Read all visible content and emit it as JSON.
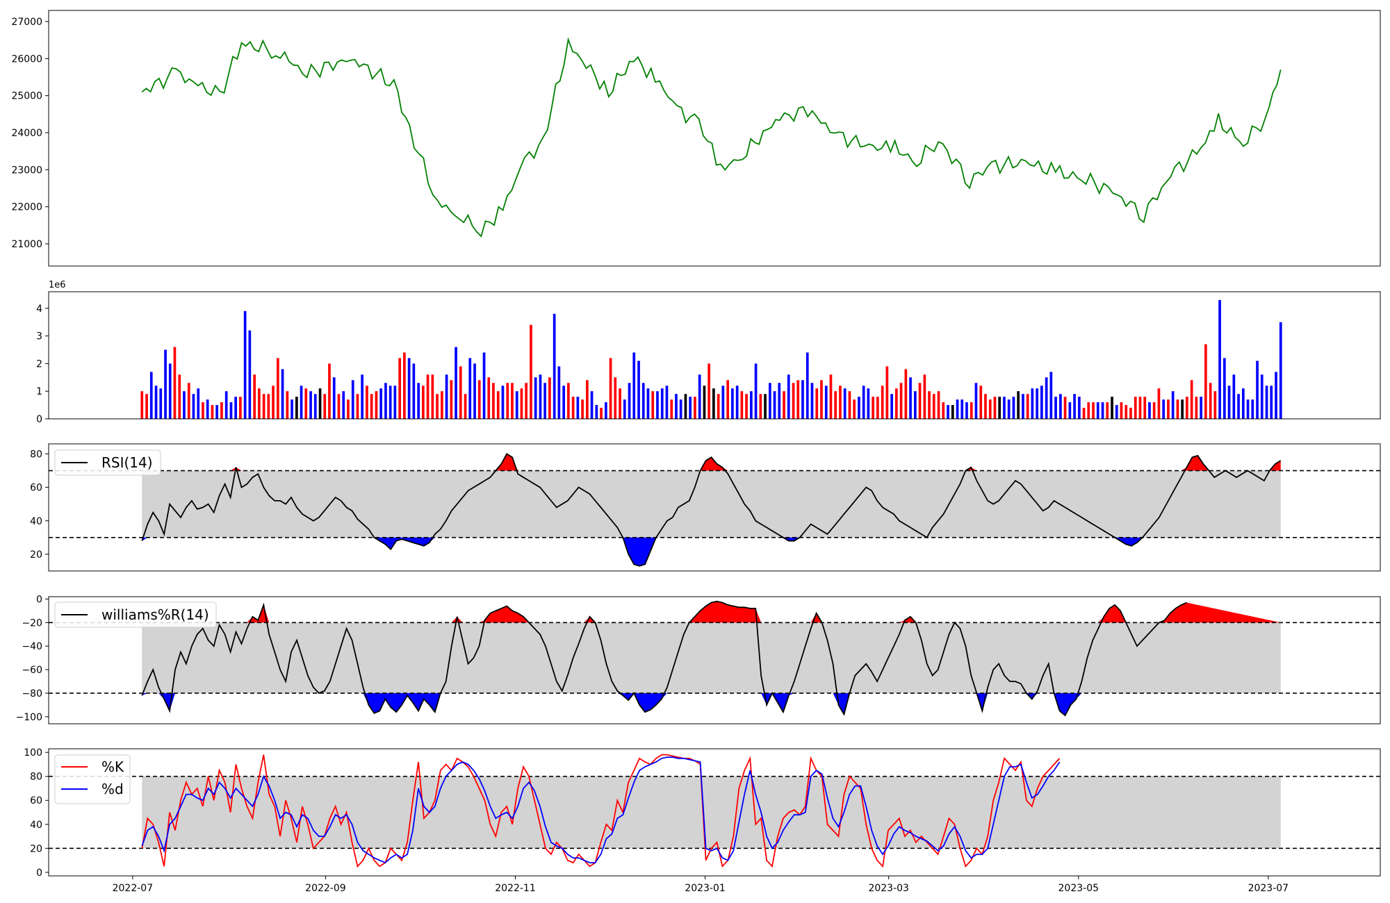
{
  "chart_data": [
    {
      "type": "line",
      "panel": "price",
      "color": "#008000",
      "ylim": [
        20400,
        27300
      ],
      "yticks": [
        "21000",
        "22000",
        "23000",
        "24000",
        "25000",
        "26000",
        "27000"
      ],
      "series": [
        {
          "x": [
            "2022-07-04",
            "2022-07-15",
            "2022-07-29",
            "2022-08-05",
            "2022-08-16",
            "2022-08-26",
            "2022-09-09",
            "2022-09-23",
            "2022-09-28",
            "2022-10-07",
            "2022-10-14",
            "2022-10-21",
            "2022-10-28",
            "2022-11-04",
            "2022-11-10",
            "2022-11-18",
            "2022-12-01",
            "2022-12-09",
            "2022-12-16",
            "2022-12-23",
            "2022-12-30",
            "2023-01-06",
            "2023-01-13",
            "2023-01-25",
            "2023-02-03",
            "2023-02-13",
            "2023-02-24",
            "2023-03-03",
            "2023-03-10",
            "2023-03-17",
            "2023-03-27",
            "2023-04-03",
            "2023-04-14",
            "2023-04-25",
            "2023-05-02",
            "2023-05-12",
            "2023-05-22",
            "2023-06-01",
            "2023-06-08",
            "2023-06-15",
            "2023-06-23",
            "2023-06-30",
            "2023-07-05"
          ],
          "values": [
            25100,
            25600,
            25000,
            26400,
            26200,
            25600,
            26000,
            25300,
            24100,
            22100,
            21800,
            21300,
            22000,
            23200,
            23800,
            26400,
            25100,
            26000,
            25500,
            24600,
            24300,
            23000,
            23400,
            24400,
            24600,
            23900,
            23600,
            23600,
            23200,
            23800,
            22700,
            23100,
            23200,
            22900,
            22800,
            22400,
            21800,
            23000,
            23400,
            24300,
            23700,
            24400,
            25700
          ]
        }
      ]
    },
    {
      "type": "bar",
      "panel": "volume",
      "offset_label": "1e6",
      "ylim": [
        0,
        4.6
      ],
      "yticks": [
        "0",
        "1",
        "2",
        "3",
        "4"
      ],
      "colors": {
        "up": "#ff0000",
        "down": "#0000ff",
        "flat": "#000000"
      },
      "values": [
        1.0,
        0.9,
        1.7,
        1.2,
        1.1,
        2.5,
        2.0,
        2.6,
        1.6,
        1.0,
        1.3,
        0.9,
        1.1,
        0.6,
        0.7,
        0.5,
        0.5,
        0.6,
        1.0,
        0.6,
        0.8,
        0.8,
        3.9,
        3.2,
        1.6,
        1.1,
        0.9,
        0.9,
        1.2,
        2.2,
        1.8,
        1.0,
        0.7,
        0.8,
        1.2,
        1.1,
        1.0,
        0.9,
        1.1,
        0.9,
        2.0,
        1.5,
        0.9,
        1.0,
        0.7,
        1.4,
        0.9,
        1.6,
        1.2,
        0.9,
        1.0,
        1.1,
        1.3,
        1.2,
        1.2,
        2.2,
        2.4,
        2.2,
        2.0,
        1.3,
        1.2,
        1.6,
        1.6,
        0.9,
        1.0,
        1.6,
        1.4,
        2.6,
        1.9,
        0.9,
        2.2,
        2.0,
        1.4,
        2.4,
        1.5,
        1.3,
        1.0,
        1.2,
        1.3,
        1.3,
        1.0,
        1.1,
        1.3,
        3.4,
        1.5,
        1.6,
        1.3,
        1.5,
        3.8,
        1.9,
        1.2,
        1.3,
        0.8,
        0.8,
        0.7,
        1.4,
        1.0,
        0.5,
        0.4,
        0.6,
        2.2,
        1.5,
        1.1,
        0.7,
        1.3,
        2.4,
        2.1,
        1.3,
        1.1,
        1.0,
        1.0,
        1.1,
        1.2,
        0.7,
        0.9,
        0.7,
        0.9,
        0.8,
        0.8,
        1.6,
        1.2,
        2.0,
        1.1,
        0.9,
        1.2,
        1.4,
        1.1,
        1.2,
        1.0,
        0.9,
        1.0,
        2.0,
        0.9,
        0.9,
        1.3,
        1.0,
        1.3,
        1.0,
        1.6,
        1.3,
        1.4,
        1.4,
        2.4,
        1.3,
        1.1,
        1.4,
        1.2,
        1.6,
        1.0,
        1.2,
        1.1,
        1.0,
        0.7,
        0.8,
        1.2,
        1.1,
        0.8,
        0.8,
        1.2,
        1.9,
        0.9,
        1.1,
        1.3,
        1.8,
        1.5,
        1.0,
        1.3,
        1.6,
        1.0,
        0.9,
        1.0,
        0.6,
        0.5,
        0.5,
        0.7,
        0.7,
        0.6,
        0.6,
        1.3,
        1.2,
        0.9,
        0.7,
        0.8,
        0.8,
        0.8,
        0.7,
        0.8,
        1.0,
        0.9,
        0.9,
        1.1,
        1.1,
        1.2,
        1.5,
        1.7,
        0.8,
        0.9,
        0.8,
        0.6,
        0.9,
        0.8,
        0.4,
        0.6,
        0.6,
        0.6,
        0.6,
        0.6,
        0.8,
        0.5,
        0.6,
        0.5,
        0.4,
        0.8,
        0.8,
        0.8,
        0.6,
        0.6,
        1.1,
        0.7,
        0.7,
        1.0,
        0.7,
        0.7,
        0.8,
        1.4,
        0.8,
        0.8,
        2.7,
        1.3,
        1.0,
        4.3,
        2.2,
        1.2,
        1.6,
        0.9,
        1.1,
        0.7,
        0.7,
        2.1,
        1.6,
        1.2,
        1.2,
        1.7,
        3.5
      ],
      "trend": "RRBBBBBRRBRBBRBRBRBBBRBBRRRRRRBRBKBRBBKRRBRBRBRBRRRBBBBRRBBBRRRRRBRBRRBBRBRRRBRRBRRRBBBRBBBRRBRRBBRBRRRBBBBBBRBBBRBBKBRBKRKRBRBBRRBBRKBBBRBRRBBBRRBRRRBRRBBBRRRRBRRRBBRRRRRRBKBBBRBRRRRKBBBKBRBBBBBBBRBBBRRRBBRKBRRRRRRBRRBRBRKRRRBRRR"
    },
    {
      "type": "line",
      "panel": "rsi",
      "legend": "RSI(14)",
      "ylim": [
        10,
        86
      ],
      "yticks": [
        "20",
        "40",
        "60",
        "80"
      ],
      "thresholds": [
        30,
        70
      ],
      "colors": {
        "line": "#000000",
        "above": "#ff0000",
        "below": "#0000ff",
        "band": "#d3d3d3"
      },
      "values": [
        28,
        38,
        45,
        40,
        32,
        50,
        46,
        42,
        48,
        52,
        47,
        48,
        50,
        45,
        55,
        62,
        54,
        72,
        60,
        62,
        66,
        68,
        60,
        55,
        52,
        52,
        50,
        54,
        48,
        44,
        42,
        40,
        42,
        46,
        50,
        54,
        52,
        48,
        46,
        41,
        38,
        35,
        30,
        28,
        26,
        23,
        28,
        29,
        28,
        27,
        26,
        25,
        27,
        32,
        35,
        40,
        46,
        50,
        54,
        58,
        60,
        62,
        64,
        66,
        70,
        74,
        80,
        78,
        68,
        66,
        64,
        62,
        60,
        56,
        52,
        48,
        50,
        52,
        56,
        60,
        58,
        56,
        52,
        48,
        44,
        40,
        36,
        30,
        20,
        14,
        13,
        14,
        22,
        30,
        35,
        40,
        42,
        48,
        50,
        52,
        60,
        70,
        76,
        78,
        74,
        72,
        68,
        62,
        56,
        50,
        46,
        40,
        38,
        36,
        34,
        32,
        30,
        28,
        28,
        30,
        34,
        38,
        36,
        34,
        32,
        36,
        40,
        44,
        48,
        52,
        56,
        60,
        58,
        52,
        48,
        46,
        44,
        40,
        38,
        36,
        34,
        32,
        30,
        36,
        40,
        44,
        50,
        56,
        62,
        70,
        72,
        64,
        58,
        52,
        50,
        52,
        56,
        60,
        64,
        62,
        58,
        54,
        50,
        46,
        48,
        52,
        50,
        48,
        46,
        44,
        42,
        40,
        38,
        36,
        34,
        32,
        30,
        28,
        26,
        25,
        27,
        30,
        34,
        38,
        42,
        48,
        54,
        60,
        66,
        72,
        78,
        79,
        74,
        70,
        66,
        68,
        70,
        68,
        66,
        68,
        70,
        68,
        66,
        64,
        70,
        74,
        76
      ]
    },
    {
      "type": "line",
      "panel": "williams",
      "legend": "williams%R(14)",
      "ylim": [
        -106,
        2
      ],
      "yticks": [
        "0",
        "−20",
        "−40",
        "−60",
        "−80",
        "−100"
      ],
      "thresholds": [
        -20,
        -80
      ],
      "colors": {
        "line": "#000000",
        "above": "#ff0000",
        "below": "#0000ff",
        "band": "#d3d3d3"
      },
      "values": [
        -82,
        -70,
        -60,
        -75,
        -85,
        -95,
        -60,
        -45,
        -55,
        -40,
        -30,
        -25,
        -35,
        -40,
        -22,
        -30,
        -45,
        -28,
        -38,
        -25,
        -15,
        -18,
        -5,
        -30,
        -45,
        -60,
        -70,
        -45,
        -35,
        -50,
        -65,
        -75,
        -80,
        -78,
        -70,
        -55,
        -40,
        -25,
        -35,
        -55,
        -75,
        -90,
        -97,
        -95,
        -85,
        -92,
        -96,
        -90,
        -82,
        -88,
        -95,
        -85,
        -90,
        -96,
        -80,
        -70,
        -40,
        -15,
        -35,
        -55,
        -50,
        -40,
        -18,
        -12,
        -10,
        -8,
        -6,
        -10,
        -12,
        -15,
        -20,
        -25,
        -30,
        -40,
        -55,
        -70,
        -78,
        -65,
        -50,
        -38,
        -25,
        -15,
        -20,
        -35,
        -55,
        -70,
        -78,
        -82,
        -86,
        -80,
        -90,
        -96,
        -94,
        -90,
        -85,
        -75,
        -60,
        -45,
        -30,
        -20,
        -15,
        -10,
        -6,
        -3,
        -2,
        -3,
        -5,
        -6,
        -7,
        -7,
        -8,
        -8,
        -65,
        -90,
        -80,
        -88,
        -96,
        -82,
        -70,
        -55,
        -40,
        -25,
        -12,
        -20,
        -35,
        -55,
        -90,
        -98,
        -80,
        -65,
        -60,
        -55,
        -62,
        -70,
        -60,
        -50,
        -40,
        -30,
        -18,
        -15,
        -20,
        -35,
        -55,
        -65,
        -60,
        -45,
        -30,
        -20,
        -25,
        -40,
        -65,
        -80,
        -95,
        -75,
        -60,
        -55,
        -65,
        -70,
        -70,
        -72,
        -80,
        -85,
        -78,
        -65,
        -55,
        -80,
        -95,
        -99,
        -90,
        -85,
        -70,
        -50,
        -35,
        -25,
        -15,
        -8,
        -5,
        -10,
        -20,
        -30,
        -40,
        -35,
        -30,
        -25,
        -20,
        -18,
        -12,
        -8,
        -5,
        -3
      ]
    },
    {
      "type": "line",
      "panel": "stochastic",
      "ylim": [
        -3,
        103
      ],
      "yticks": [
        "0",
        "20",
        "40",
        "60",
        "80",
        "100"
      ],
      "thresholds": [
        20,
        80
      ],
      "colors": {
        "band": "#d3d3d3"
      },
      "series": [
        {
          "name": "%K",
          "color": "#ff0000",
          "values": [
            20,
            45,
            40,
            25,
            5,
            50,
            35,
            60,
            75,
            65,
            70,
            55,
            80,
            60,
            85,
            75,
            50,
            90,
            70,
            55,
            45,
            75,
            98,
            65,
            55,
            30,
            60,
            45,
            25,
            55,
            40,
            20,
            25,
            30,
            45,
            55,
            40,
            50,
            25,
            5,
            10,
            20,
            10,
            5,
            8,
            20,
            15,
            10,
            25,
            60,
            92,
            45,
            50,
            60,
            85,
            90,
            85,
            95,
            92,
            88,
            80,
            70,
            60,
            40,
            30,
            50,
            55,
            40,
            70,
            88,
            80,
            60,
            40,
            20,
            15,
            25,
            20,
            10,
            8,
            15,
            10,
            5,
            8,
            25,
            40,
            35,
            60,
            50,
            75,
            85,
            95,
            92,
            90,
            95,
            98,
            98,
            97,
            96,
            95,
            95,
            93,
            90,
            10,
            20,
            25,
            5,
            10,
            30,
            70,
            85,
            95,
            40,
            45,
            10,
            5,
            30,
            45,
            50,
            52,
            48,
            55,
            95,
            85,
            80,
            40,
            35,
            30,
            65,
            80,
            75,
            70,
            40,
            20,
            10,
            5,
            35,
            40,
            45,
            30,
            35,
            25,
            30,
            25,
            20,
            15,
            30,
            45,
            40,
            20,
            5,
            10,
            20,
            15,
            30,
            60,
            75,
            95,
            90,
            85,
            92,
            60,
            55,
            70,
            80,
            85,
            90,
            95
          ]
        },
        {
          "name": "%d",
          "color": "#0000ff",
          "values": [
            22,
            35,
            38,
            30,
            18,
            40,
            45,
            55,
            65,
            65,
            62,
            60,
            70,
            65,
            75,
            70,
            62,
            70,
            65,
            60,
            55,
            65,
            80,
            72,
            60,
            45,
            50,
            48,
            38,
            48,
            45,
            35,
            30,
            30,
            38,
            48,
            45,
            48,
            40,
            25,
            18,
            15,
            12,
            10,
            8,
            12,
            15,
            12,
            15,
            35,
            70,
            55,
            50,
            55,
            70,
            80,
            85,
            90,
            92,
            90,
            85,
            78,
            68,
            55,
            45,
            48,
            50,
            45,
            55,
            70,
            75,
            68,
            55,
            38,
            25,
            22,
            20,
            15,
            12,
            12,
            10,
            8,
            8,
            15,
            28,
            32,
            45,
            48,
            62,
            75,
            85,
            88,
            90,
            92,
            95,
            96,
            96,
            95,
            95,
            94,
            93,
            92,
            20,
            18,
            20,
            12,
            10,
            18,
            42,
            65,
            85,
            65,
            50,
            30,
            20,
            25,
            35,
            42,
            48,
            48,
            50,
            80,
            85,
            82,
            62,
            45,
            38,
            50,
            65,
            72,
            72,
            55,
            35,
            22,
            15,
            22,
            32,
            38,
            35,
            33,
            30,
            28,
            26,
            22,
            18,
            22,
            32,
            38,
            30,
            18,
            12,
            15,
            15,
            20,
            40,
            60,
            80,
            88,
            88,
            90,
            75,
            62,
            65,
            72,
            80,
            85,
            92
          ]
        }
      ]
    }
  ],
  "x_axis": {
    "start": "2022-07-04",
    "end": "2023-07-05",
    "limits": [
      "2022-06-04",
      "2023-08-06"
    ],
    "ticks": [
      "2022-07",
      "2022-09",
      "2022-11",
      "2023-01",
      "2023-03",
      "2023-05",
      "2023-07"
    ]
  }
}
